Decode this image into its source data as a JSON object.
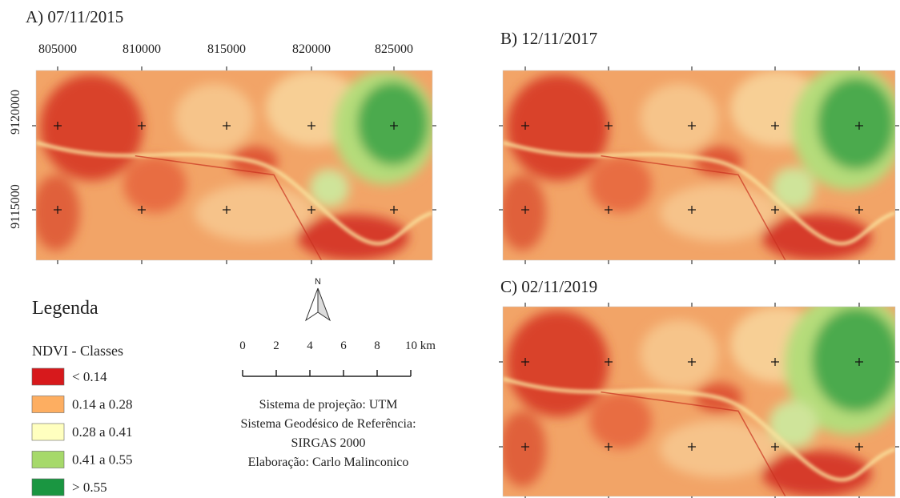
{
  "panels": [
    {
      "title": "A) 07/11/2015",
      "x_labels": [
        "805000",
        "810000",
        "815000",
        "820000",
        "825000"
      ],
      "y_labels": [
        "9120000",
        "9115000"
      ]
    },
    {
      "title": "B) 12/11/2017"
    },
    {
      "title": "C) 02/11/2019"
    }
  ],
  "legend": {
    "title": "Legenda",
    "subtitle": "NDVI - Classes",
    "classes": [
      {
        "label": "< 0.14",
        "color": "#d7191c"
      },
      {
        "label": "0.14 a 0.28",
        "color": "#fdae61"
      },
      {
        "label": "0.28 a 0.41",
        "color": "#ffffbf"
      },
      {
        "label": "0.41 a 0.55",
        "color": "#a6d96a"
      },
      {
        "label": "> 0.55",
        "color": "#1a9641"
      }
    ]
  },
  "north": "N",
  "scale_labels": [
    "0",
    "2",
    "4",
    "6",
    "8",
    "10 km"
  ],
  "info": [
    "Sistema de projeção: UTM",
    "Sistema Geodésico de Referência:",
    "SIRGAS 2000",
    "Elaboração: Carlo Malinconico"
  ]
}
